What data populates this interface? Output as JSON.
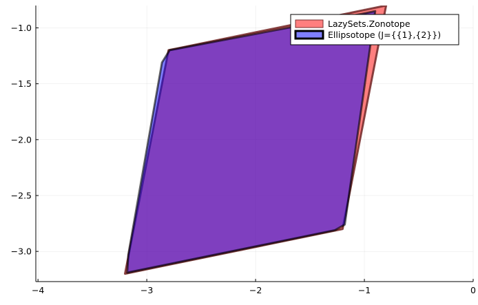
{
  "chart_data": {
    "type": "polygon",
    "xlim": [
      -4.02,
      0.0
    ],
    "ylim": [
      -3.27,
      -0.8
    ],
    "xticks": [
      -4,
      -3,
      -2,
      -1,
      0
    ],
    "yticks": [
      -3.0,
      -2.5,
      -2.0,
      -1.5,
      -1.0
    ],
    "xtick_labels": [
      "−4",
      "−3",
      "−2",
      "−1",
      "0"
    ],
    "ytick_labels": [
      "−3.0",
      "−2.5",
      "−2.0",
      "−1.5",
      "−1.0"
    ],
    "grid": true,
    "legend_position": "top-right",
    "series": [
      {
        "name": "LazySets.Zonotope",
        "fill": "#ff0000",
        "stroke": "#7a3030",
        "points": [
          [
            -3.2,
            -3.2
          ],
          [
            -2.8,
            -1.2
          ],
          [
            -0.8,
            -0.8
          ],
          [
            -1.2,
            -2.8
          ]
        ]
      },
      {
        "name": "Ellipsotope (J={{1},{2}})",
        "fill": "#0000ff",
        "stroke": "#000000",
        "points": [
          [
            -3.18,
            -3.19
          ],
          [
            -3.17,
            -3.03
          ],
          [
            -2.86,
            -1.31
          ],
          [
            -2.79,
            -1.2
          ],
          [
            -1.0,
            -0.87
          ],
          [
            -0.9,
            -0.85
          ],
          [
            -1.18,
            -2.76
          ],
          [
            -1.27,
            -2.81
          ]
        ]
      }
    ]
  }
}
